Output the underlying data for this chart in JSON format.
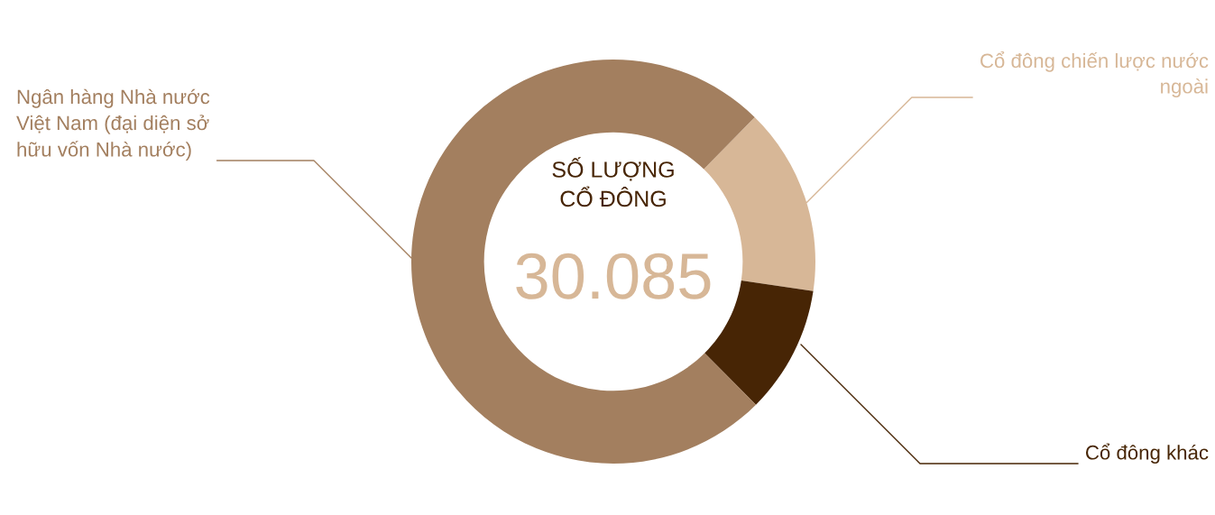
{
  "chart_data": {
    "type": "donut",
    "categories": [
      "Cổ đông chiến lược nước\nngoài",
      "Cổ đông khác",
      "Ngân hàng Nhà nước\nViệt Nam (đại diện sở\nhữu vốn Nhà nước)"
    ],
    "values": [
      15.0,
      10.2,
      74.8
    ],
    "colors": [
      "#d7b797",
      "#472505",
      "#a37f5f"
    ],
    "annotations": [
      "SỐ LƯỢNG\nCỔ ĐÔNG",
      "30.085"
    ],
    "legend": false
  }
}
